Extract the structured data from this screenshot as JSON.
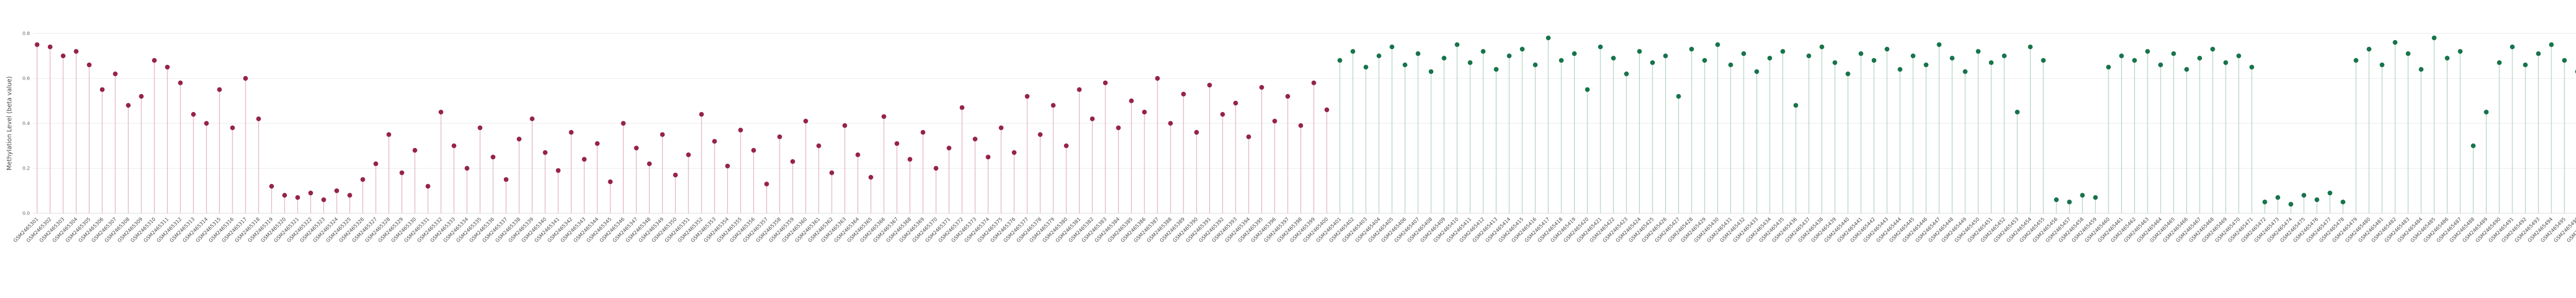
{
  "chart_data": {
    "type": "lollipop",
    "title": "",
    "ylabel": "Methylation Level (beta value)",
    "xlabel": "",
    "ylim": [
      0,
      0.8
    ],
    "y_ticks": [
      0,
      0.2,
      0.4,
      0.6,
      0.8
    ],
    "grid": true,
    "legend": "none",
    "x_labels": {
      "prefix": "GSM",
      "start": 2465301,
      "count": 200,
      "note": "rotated sample-ID tick labels, illegible at capture scale"
    },
    "groups": [
      {
        "name": "group-1-red",
        "point_color": "#96234a",
        "stem_color": "#e6bcc8",
        "count": 100
      },
      {
        "name": "group-2-green",
        "point_color": "#17744b",
        "stem_color": "#bdd8ca",
        "count": 100
      }
    ],
    "values": [
      0.75,
      0.74,
      0.7,
      0.72,
      0.66,
      0.55,
      0.62,
      0.48,
      0.52,
      0.68,
      0.65,
      0.58,
      0.44,
      0.4,
      0.55,
      0.38,
      0.6,
      0.42,
      0.12,
      0.08,
      0.07,
      0.09,
      0.06,
      0.1,
      0.08,
      0.15,
      0.22,
      0.35,
      0.18,
      0.28,
      0.12,
      0.45,
      0.3,
      0.2,
      0.38,
      0.25,
      0.15,
      0.33,
      0.42,
      0.27,
      0.19,
      0.36,
      0.24,
      0.31,
      0.14,
      0.4,
      0.29,
      0.22,
      0.35,
      0.17,
      0.26,
      0.44,
      0.32,
      0.21,
      0.37,
      0.28,
      0.13,
      0.34,
      0.23,
      0.41,
      0.3,
      0.18,
      0.39,
      0.26,
      0.16,
      0.43,
      0.31,
      0.24,
      0.36,
      0.2,
      0.29,
      0.47,
      0.33,
      0.25,
      0.38,
      0.27,
      0.52,
      0.35,
      0.48,
      0.3,
      0.55,
      0.42,
      0.58,
      0.38,
      0.5,
      0.45,
      0.6,
      0.4,
      0.53,
      0.36,
      0.57,
      0.44,
      0.49,
      0.34,
      0.56,
      0.41,
      0.52,
      0.39,
      0.58,
      0.46,
      0.68,
      0.72,
      0.65,
      0.7,
      0.74,
      0.66,
      0.71,
      0.63,
      0.69,
      0.75,
      0.67,
      0.72,
      0.64,
      0.7,
      0.73,
      0.66,
      0.78,
      0.68,
      0.71,
      0.55,
      0.74,
      0.69,
      0.62,
      0.72,
      0.67,
      0.7,
      0.52,
      0.73,
      0.68,
      0.75,
      0.66,
      0.71,
      0.63,
      0.69,
      0.72,
      0.48,
      0.7,
      0.74,
      0.67,
      0.62,
      0.71,
      0.68,
      0.73,
      0.64,
      0.7,
      0.66,
      0.75,
      0.69,
      0.63,
      0.72,
      0.67,
      0.7,
      0.45,
      0.74,
      0.68,
      0.06,
      0.05,
      0.08,
      0.07,
      0.65,
      0.7,
      0.68,
      0.72,
      0.66,
      0.71,
      0.64,
      0.69,
      0.73,
      0.67,
      0.7,
      0.65,
      0.05,
      0.07,
      0.04,
      0.08,
      0.06,
      0.09,
      0.05,
      0.68,
      0.73,
      0.66,
      0.76,
      0.71,
      0.64,
      0.78,
      0.69,
      0.72,
      0.3,
      0.45,
      0.67,
      0.74,
      0.66,
      0.71,
      0.75,
      0.68,
      0.63,
      0.72,
      0.7,
      0.66,
      0.73
    ]
  },
  "colors": {
    "grid": "#eaeaea",
    "baseline": "#d8d8d8",
    "axis_text": "#4a4a4a",
    "tick_text": "#666666",
    "background": "#ffffff"
  }
}
